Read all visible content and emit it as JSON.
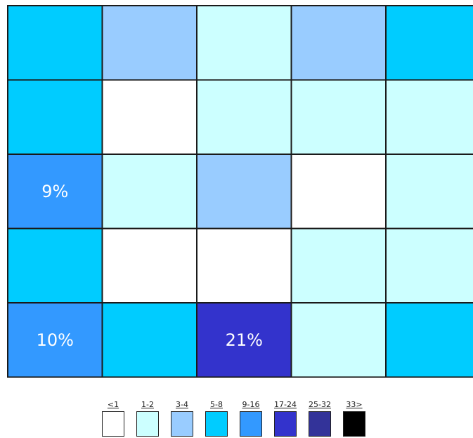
{
  "chart_data": {
    "type": "heatmap",
    "title": "",
    "xlabel": "",
    "ylabel": "",
    "rows": 5,
    "columns": 5,
    "cells": [
      [
        {
          "bin": "5-8",
          "label": ""
        },
        {
          "bin": "3-4",
          "label": ""
        },
        {
          "bin": "1-2",
          "label": ""
        },
        {
          "bin": "3-4",
          "label": ""
        },
        {
          "bin": "5-8",
          "label": ""
        }
      ],
      [
        {
          "bin": "5-8",
          "label": ""
        },
        {
          "bin": "<1",
          "label": ""
        },
        {
          "bin": "1-2",
          "label": ""
        },
        {
          "bin": "1-2",
          "label": ""
        },
        {
          "bin": "1-2",
          "label": ""
        }
      ],
      [
        {
          "bin": "9-16",
          "label": "9%"
        },
        {
          "bin": "1-2",
          "label": ""
        },
        {
          "bin": "3-4",
          "label": ""
        },
        {
          "bin": "<1",
          "label": ""
        },
        {
          "bin": "1-2",
          "label": ""
        }
      ],
      [
        {
          "bin": "5-8",
          "label": ""
        },
        {
          "bin": "<1",
          "label": ""
        },
        {
          "bin": "<1",
          "label": ""
        },
        {
          "bin": "1-2",
          "label": ""
        },
        {
          "bin": "1-2",
          "label": ""
        }
      ],
      [
        {
          "bin": "9-16",
          "label": "10%"
        },
        {
          "bin": "5-8",
          "label": ""
        },
        {
          "bin": "17-24",
          "label": "21%"
        },
        {
          "bin": "1-2",
          "label": ""
        },
        {
          "bin": "5-8",
          "label": ""
        }
      ]
    ],
    "legend": {
      "placement": "bottom",
      "items": [
        {
          "label": "<1",
          "color": "#ffffff"
        },
        {
          "label": "1-2",
          "color": "#ccffff"
        },
        {
          "label": "3-4",
          "color": "#99ccff"
        },
        {
          "label": "5-8",
          "color": "#00ccff"
        },
        {
          "label": "9-16",
          "color": "#3399ff"
        },
        {
          "label": "17-24",
          "color": "#3333cc"
        },
        {
          "label": "25-32",
          "color": "#333399"
        },
        {
          "label": "33>",
          "color": "#000000"
        }
      ]
    },
    "grid": true
  }
}
